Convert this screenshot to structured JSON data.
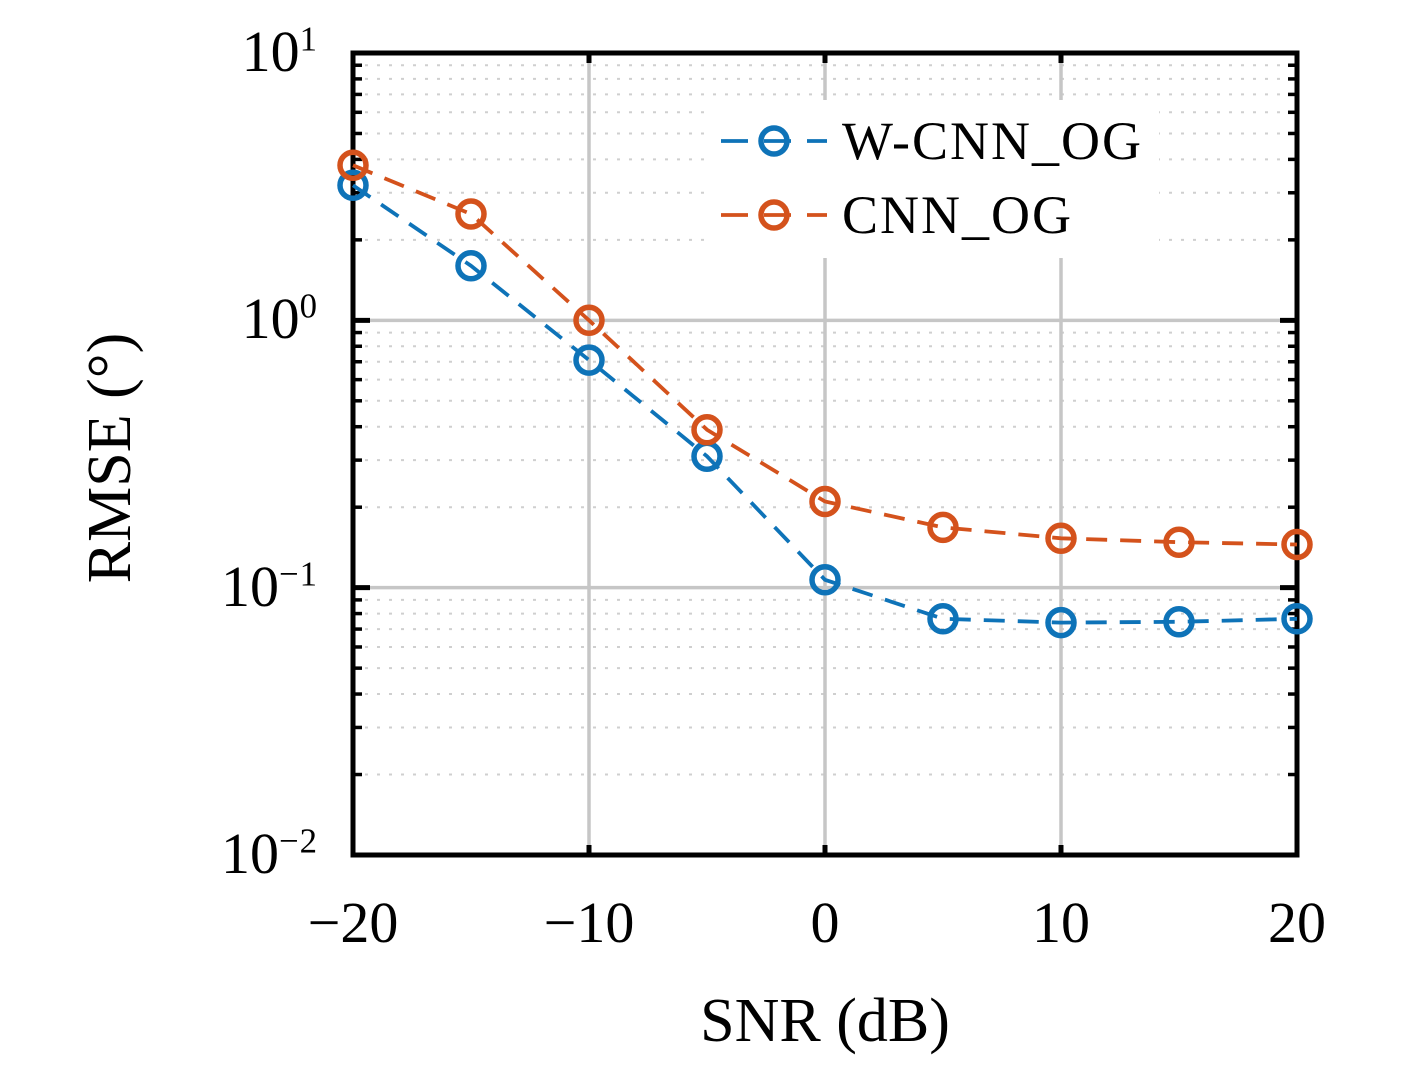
{
  "chart_data": {
    "type": "line",
    "title": "",
    "xlabel": "SNR (dB)",
    "ylabel": "RMSE (°)",
    "x": [
      -20,
      -15,
      -10,
      -5,
      0,
      5,
      10,
      15,
      20
    ],
    "series": [
      {
        "name": "W-CNN_OG",
        "color": "#0e73b8",
        "linestyle": "dashed",
        "marker": "open-circle",
        "values": [
          3.2,
          1.6,
          0.71,
          0.31,
          0.107,
          0.0765,
          0.074,
          0.0745,
          0.0765
        ]
      },
      {
        "name": "CNN_OG",
        "color": "#d4521c",
        "linestyle": "dashed",
        "marker": "open-circle",
        "values": [
          3.8,
          2.5,
          1.0,
          0.39,
          0.21,
          0.168,
          0.153,
          0.148,
          0.145
        ]
      }
    ],
    "xlim": [
      -20,
      20
    ],
    "ylim": [
      0.01,
      10
    ],
    "yscale": "log",
    "xticks": [
      -20,
      -10,
      0,
      10,
      20
    ],
    "xtick_labels": [
      "−20",
      "−10",
      "0",
      "10",
      "20"
    ],
    "ytick_exponents": [
      "1",
      "0",
      "−1",
      "−2"
    ],
    "grid": {
      "major": true,
      "minor": "dotted-horizontal",
      "major_color": "#c6c6c6",
      "minor_color": "#cfcfcf"
    },
    "legend": {
      "position": "top-right",
      "frame": false
    },
    "spine_color": "#000000"
  }
}
